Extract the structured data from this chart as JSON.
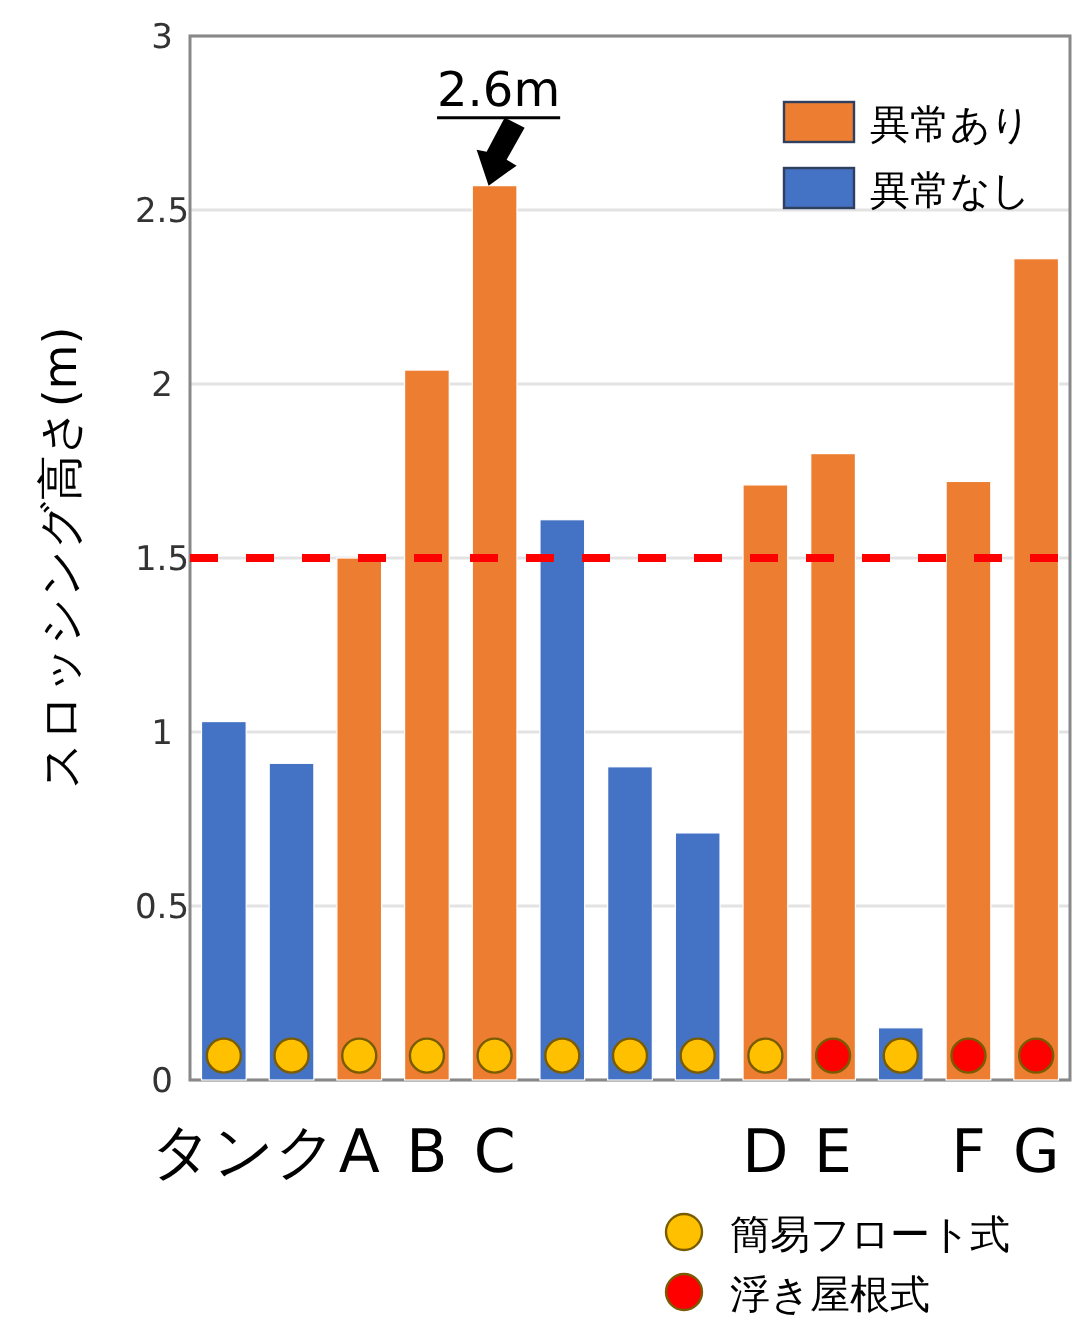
{
  "chart_data": {
    "type": "bar",
    "ylabel": "スロッシング高さ(m)",
    "categories": [
      null,
      null,
      "A",
      "B",
      "C",
      null,
      null,
      null,
      "D",
      "E",
      null,
      "F",
      "G"
    ],
    "series": [
      {
        "name": "異常あり",
        "color": "#ed7d31",
        "values": [
          null,
          null,
          1.5,
          2.04,
          2.57,
          null,
          null,
          null,
          1.71,
          1.8,
          null,
          1.72,
          2.36
        ]
      },
      {
        "name": "異常なし",
        "color": "#4472c4",
        "values": [
          1.03,
          0.91,
          null,
          null,
          null,
          1.61,
          0.9,
          0.71,
          null,
          null,
          0.15,
          null,
          null
        ]
      },
      {
        "name": "簡易フロート式",
        "type": "scatter",
        "marker": "circle",
        "color": "#ffc000",
        "values": [
          0.07,
          0.07,
          0.07,
          0.07,
          0.07,
          0.07,
          0.07,
          0.07,
          0.07,
          null,
          0.07,
          null,
          null
        ]
      },
      {
        "name": "浮き屋根式",
        "type": "scatter",
        "marker": "circle",
        "color": "#ff0000",
        "values": [
          null,
          null,
          null,
          null,
          null,
          null,
          null,
          null,
          null,
          0.07,
          null,
          0.07,
          0.07
        ]
      }
    ],
    "ylim": [
      0,
      3
    ],
    "yticks": [
      0,
      0.5,
      1,
      1.5,
      2,
      2.5,
      3
    ],
    "grid": "y",
    "legend": "right",
    "ref_lines": [
      {
        "axis": "y",
        "value": 1.5,
        "color": "#ff0000",
        "line_style": "dashed"
      }
    ],
    "annotations": [
      {
        "text": "2.6m",
        "x": "C",
        "y": 2.57
      },
      "タンク"
    ]
  }
}
